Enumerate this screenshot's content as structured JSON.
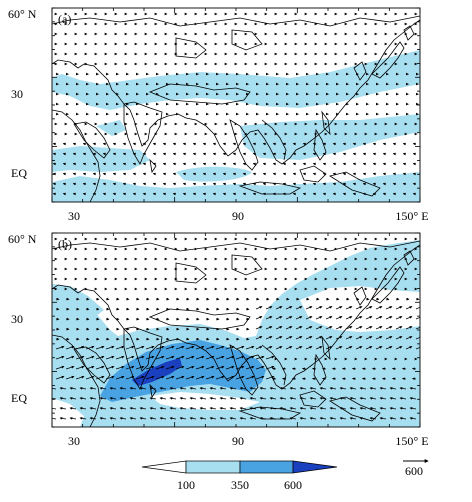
{
  "panels": [
    {
      "id": "a",
      "label": "(a)",
      "lat_labels": [
        "60° N",
        "30",
        "EQ"
      ],
      "lon_labels": [
        "30",
        "90",
        "150° E"
      ]
    },
    {
      "id": "b",
      "label": "(b)",
      "lat_labels": [
        "60° N",
        "30",
        "EQ"
      ],
      "lon_labels": [
        "30",
        "90",
        "150° E"
      ]
    }
  ],
  "colorbar": {
    "ticks": [
      "100",
      "350",
      "600"
    ],
    "colors": [
      "#ffffff",
      "#a8dff0",
      "#49a3e3",
      "#1a3fbf"
    ]
  },
  "reference_vector": {
    "label": "600"
  },
  "colors": {
    "light": "#a8dff0",
    "medium": "#49a3e3",
    "dark": "#1a3fbf",
    "coast": "#000000"
  }
}
